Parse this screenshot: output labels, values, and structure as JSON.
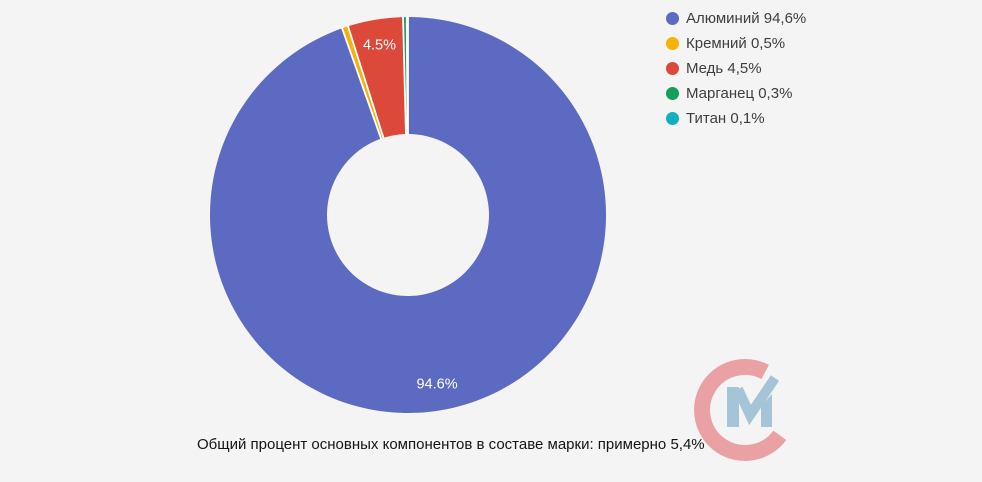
{
  "background_color": "#f4f4f4",
  "caption": "Общий процент основных компонентов в составе марки: примерно 5,4%",
  "chart_data": {
    "type": "pie",
    "donut": true,
    "pie_hole": 0.41,
    "start_angle_deg": 0,
    "direction": "clockwise",
    "legend_position": "right-top",
    "slice_label_color": "#ffffff",
    "separator_color": "#ffffff",
    "categories": [
      "Алюминий",
      "Кремний",
      "Медь",
      "Марганец",
      "Титан"
    ],
    "values": [
      94.6,
      0.5,
      4.5,
      0.3,
      0.1
    ],
    "slices": [
      {
        "key": "aluminium",
        "label": "Алюминий",
        "value": 94.6,
        "legend_label": "Алюминий 94,6%",
        "slice_label": "94.6%",
        "color": "#5c6ac2"
      },
      {
        "key": "silicon",
        "label": "Кремний",
        "value": 0.5,
        "legend_label": "Кремний 0,5%",
        "slice_label": "",
        "color": "#f4b106"
      },
      {
        "key": "copper",
        "label": "Медь",
        "value": 4.5,
        "legend_label": "Медь 4,5%",
        "slice_label": "4.5%",
        "color": "#dc4839"
      },
      {
        "key": "manganese",
        "label": "Марганец",
        "value": 0.3,
        "legend_label": "Марганец 0,3%",
        "slice_label": "",
        "color": "#14a05c"
      },
      {
        "key": "titanium",
        "label": "Титан",
        "value": 0.1,
        "legend_label": "Титан 0,1%",
        "slice_label": "",
        "color": "#10b0bf"
      }
    ]
  },
  "logo": {
    "letter_c_color": "#e9a1a4",
    "letter_m_color": "#a6c4d8"
  }
}
